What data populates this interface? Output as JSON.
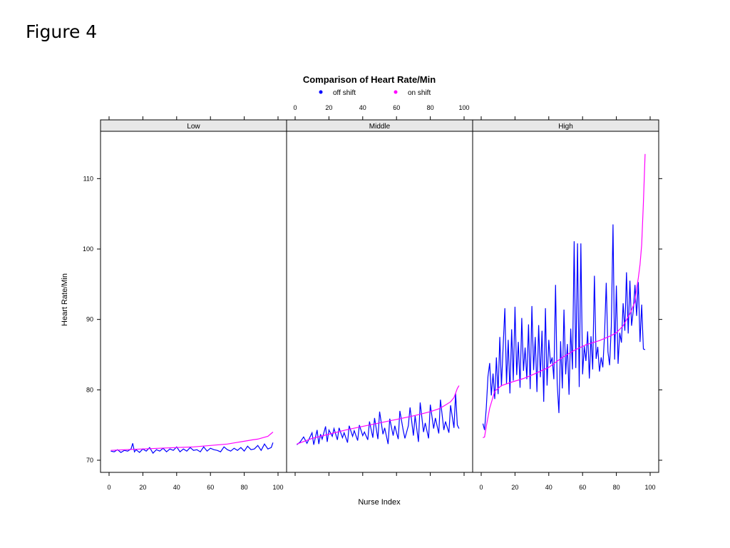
{
  "figure_label": "Figure 4",
  "chart_data": {
    "type": "line",
    "title": "Comparison of Heart Rate/Min",
    "xlabel": "Nurse Index",
    "ylabel": "Heart Rate/Min",
    "xlim": [
      0,
      100
    ],
    "ylim": [
      70,
      115
    ],
    "x_ticks": [
      0,
      20,
      40,
      60,
      80,
      100
    ],
    "y_ticks": [
      70,
      80,
      90,
      100,
      110
    ],
    "legend": {
      "placement": "top",
      "entries": [
        {
          "label": "off shift",
          "color": "#0000ff"
        },
        {
          "label": "on shift",
          "color": "#ff00ff"
        }
      ]
    },
    "colors": {
      "off_shift": "#0000ff",
      "on_shift": "#ff00ff",
      "strip": "#e8e8e8"
    },
    "panels": [
      {
        "name": "Low",
        "series": [
          {
            "name": "off shift",
            "x": [
              1,
              3,
              5,
              7,
              9,
              11,
              13,
              14,
              15,
              16,
              18,
              20,
              22,
              24,
              26,
              28,
              30,
              32,
              34,
              36,
              38,
              40,
              42,
              44,
              46,
              48,
              50,
              52,
              54,
              56,
              58,
              60,
              62,
              64,
              66,
              68,
              70,
              72,
              74,
              76,
              78,
              80,
              82,
              84,
              86,
              88,
              90,
              92,
              94,
              96,
              97
            ],
            "y": [
              71.3,
              71.2,
              71.5,
              71.1,
              71.4,
              71.3,
              71.6,
              72.4,
              71.2,
              71.5,
              71.1,
              71.6,
              71.3,
              71.8,
              71.0,
              71.5,
              71.3,
              71.7,
              71.2,
              71.6,
              71.4,
              71.9,
              71.2,
              71.6,
              71.3,
              71.8,
              71.4,
              71.5,
              71.2,
              71.9,
              71.3,
              71.7,
              71.5,
              71.4,
              71.2,
              71.9,
              71.5,
              71.3,
              71.7,
              71.4,
              71.8,
              71.3,
              72.0,
              71.5,
              71.6,
              72.1,
              71.4,
              72.3,
              71.6,
              71.8,
              72.5
            ]
          },
          {
            "name": "on shift",
            "x": [
              1,
              10,
              20,
              30,
              40,
              50,
              60,
              70,
              75,
              80,
              85,
              88,
              91,
              94,
              96,
              97
            ],
            "y": [
              71.4,
              71.5,
              71.6,
              71.7,
              71.8,
              71.9,
              72.1,
              72.3,
              72.5,
              72.7,
              72.9,
              73.0,
              73.2,
              73.4,
              73.8,
              74.0
            ]
          }
        ]
      },
      {
        "name": "Middle",
        "series": [
          {
            "name": "off shift",
            "x": [
              1,
              3,
              5,
              7,
              8,
              10,
              11,
              13,
              14,
              15,
              16,
              18,
              19,
              20,
              22,
              23,
              25,
              26,
              28,
              29,
              31,
              32,
              34,
              35,
              37,
              38,
              40,
              41,
              43,
              44,
              46,
              47,
              49,
              50,
              52,
              53,
              55,
              56,
              58,
              59,
              61,
              62,
              64,
              65,
              67,
              68,
              70,
              71,
              73,
              74,
              76,
              77,
              79,
              80,
              82,
              83,
              85,
              86,
              88,
              89,
              91,
              92,
              94,
              95,
              96,
              97
            ],
            "y": [
              72.2,
              72.6,
              73.3,
              72.4,
              72.9,
              73.9,
              72.2,
              74.3,
              72.3,
              73.7,
              73.0,
              74.8,
              72.6,
              74.3,
              73.4,
              74.5,
              72.9,
              74.6,
              73.2,
              73.9,
              72.5,
              74.9,
              73.4,
              74.2,
              72.8,
              75.0,
              73.5,
              74.0,
              72.9,
              75.5,
              73.2,
              76.0,
              73.0,
              76.9,
              73.7,
              74.6,
              72.3,
              75.9,
              73.5,
              74.9,
              73.0,
              77.0,
              74.2,
              73.1,
              74.9,
              77.5,
              73.5,
              76.3,
              72.6,
              78.2,
              74.0,
              75.3,
              73.1,
              77.9,
              74.5,
              76.0,
              73.8,
              78.6,
              74.3,
              75.5,
              73.9,
              77.8,
              74.6,
              79.5,
              75.0,
              74.5
            ]
          },
          {
            "name": "on shift",
            "x": [
              1,
              10,
              20,
              30,
              40,
              50,
              60,
              70,
              75,
              80,
              85,
              88,
              90,
              92,
              94,
              96,
              97
            ],
            "y": [
              72.3,
              73.1,
              73.7,
              74.3,
              74.8,
              75.3,
              75.8,
              76.3,
              76.6,
              76.9,
              77.3,
              77.7,
              78.0,
              78.3,
              78.9,
              80.2,
              80.6
            ]
          }
        ]
      },
      {
        "name": "High",
        "series": [
          {
            "name": "off shift",
            "x": [
              1,
              2,
              3,
              4,
              5,
              6,
              7,
              8,
              9,
              10,
              11,
              12,
              13,
              14,
              15,
              16,
              17,
              18,
              19,
              20,
              21,
              22,
              23,
              24,
              25,
              26,
              27,
              28,
              29,
              30,
              31,
              32,
              33,
              34,
              35,
              36,
              37,
              38,
              39,
              40,
              41,
              42,
              43,
              44,
              45,
              46,
              47,
              48,
              49,
              50,
              51,
              52,
              53,
              54,
              55,
              56,
              57,
              58,
              59,
              60,
              61,
              62,
              63,
              64,
              65,
              66,
              67,
              68,
              69,
              70,
              71,
              72,
              73,
              74,
              75,
              76,
              77,
              78,
              79,
              80,
              81,
              82,
              83,
              84,
              85,
              86,
              87,
              88,
              89,
              90,
              91,
              92,
              93,
              94,
              95,
              96,
              97
            ],
            "y": [
              75.2,
              74.3,
              77.4,
              81.9,
              83.8,
              79.2,
              82.3,
              78.7,
              84.6,
              79.4,
              87.5,
              80.5,
              86.2,
              91.6,
              80.9,
              87.1,
              79.5,
              88.6,
              81.3,
              91.8,
              82.1,
              86.8,
              80.3,
              90.2,
              82.7,
              86.0,
              81.5,
              89.3,
              80.1,
              91.9,
              82.8,
              87.5,
              79.7,
              89.2,
              81.8,
              88.4,
              78.3,
              91.6,
              80.6,
              87.1,
              83.7,
              84.6,
              81.5,
              94.9,
              80.9,
              76.7,
              86.9,
              80.2,
              91.4,
              82.2,
              86.5,
              79.3,
              88.7,
              82.9,
              101.1,
              83.1,
              100.8,
              80.4,
              100.8,
              82.2,
              86.2,
              84.1,
              88.3,
              81.6,
              87.6,
              82.9,
              96.2,
              84.4,
              86.1,
              82.6,
              84.6,
              83.2,
              87.8,
              95.2,
              85.4,
              83.5,
              89.0,
              103.5,
              84.3,
              94.8,
              83.7,
              88.1,
              86.7,
              92.3,
              88.4,
              96.7,
              88.0,
              95.5,
              89.1,
              91.2,
              94.9,
              90.5,
              95.3,
              86.8,
              92.1,
              85.8,
              85.7
            ]
          },
          {
            "name": "on shift",
            "x": [
              1,
              2,
              3,
              5,
              8,
              12,
              18,
              25,
              32,
              40,
              48,
              55,
              62,
              70,
              76,
              80,
              84,
              88,
              91,
              92,
              93,
              94,
              95,
              96,
              97
            ],
            "y": [
              73.2,
              73.3,
              74.8,
              77.4,
              79.8,
              80.6,
              81.1,
              81.6,
              82.3,
              83.2,
              84.6,
              85.6,
              86.4,
              87.0,
              87.6,
              88.1,
              89.1,
              90.8,
              92.5,
              94.3,
              95.9,
              97.8,
              100.6,
              106.5,
              113.5
            ]
          }
        ]
      }
    ]
  }
}
